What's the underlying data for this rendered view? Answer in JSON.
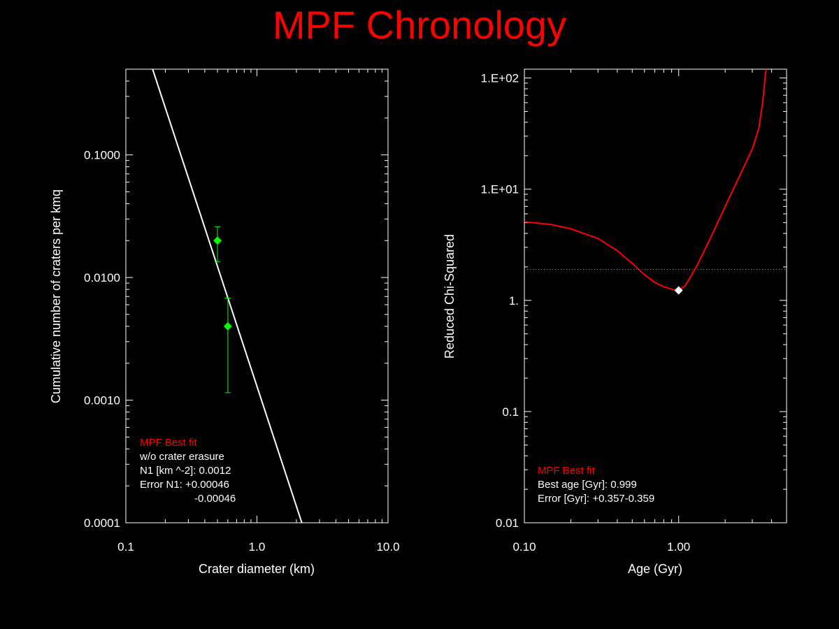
{
  "title": "MPF Chronology",
  "colors": {
    "background": "#000000",
    "title": "#ff0000",
    "fit_line": "#ffffff",
    "data_points": "#00ff00",
    "chi_curve": "#ff0000",
    "threshold": "#00ff00",
    "best_marker": "#ffffff",
    "legend_title": "#ff0000",
    "legend_text": "#ffffff"
  },
  "chart_data": [
    {
      "type": "scatter",
      "xlabel": "Crater diameter (km)",
      "ylabel": "Cumulative number of craters per kmq",
      "xscale": "log",
      "yscale": "log",
      "xlim": [
        0.1,
        10.0
      ],
      "ylim": [
        0.0001,
        0.5
      ],
      "xticks": [
        0.1,
        1.0,
        10.0
      ],
      "xtick_labels": [
        "0.1",
        "1.0",
        "10.0"
      ],
      "yticks": [
        0.0001,
        0.001,
        0.01,
        0.1
      ],
      "ytick_labels": [
        "0.0001",
        "0.0010",
        "0.0100",
        "0.1000"
      ],
      "fit_line": {
        "x": [
          0.16,
          2.2
        ],
        "y": [
          0.5,
          0.0001
        ]
      },
      "points": [
        {
          "x": 0.5,
          "y": 0.02,
          "y_low": 0.0135,
          "y_high": 0.026
        },
        {
          "x": 0.6,
          "y": 0.004,
          "y_low": 0.00115,
          "y_high": 0.0068
        }
      ],
      "legend": {
        "title": "MPF Best fit",
        "lines": [
          "w/o crater erasure",
          "N1 [km ^-2]: 0.0012",
          "Error N1: +0.00046",
          "-0.00046"
        ]
      }
    },
    {
      "type": "line",
      "xlabel": "Age (Gyr)",
      "ylabel": "Reduced Chi-Squared",
      "xscale": "log",
      "yscale": "log",
      "xlim": [
        0.1,
        5.0
      ],
      "ylim": [
        0.01,
        120
      ],
      "xticks": [
        0.1,
        1.0
      ],
      "xtick_labels": [
        "0.10",
        "1.00"
      ],
      "yticks": [
        0.01,
        0.1,
        1,
        10,
        100
      ],
      "ytick_labels": [
        "0.01",
        "0.1",
        "1.",
        "1.E+01",
        "1.E+02"
      ],
      "series": [
        {
          "x": [
            0.1,
            0.15,
            0.2,
            0.3,
            0.4,
            0.5,
            0.6,
            0.7,
            0.8,
            0.9,
            0.999,
            1.1,
            1.3,
            1.6,
            2.0,
            2.5,
            3.0,
            3.3,
            3.5,
            3.6,
            3.65,
            3.7
          ],
          "y": [
            5.1,
            4.8,
            4.4,
            3.6,
            2.8,
            2.15,
            1.7,
            1.45,
            1.33,
            1.26,
            1.23,
            1.35,
            2.0,
            3.6,
            7.0,
            13.5,
            23.0,
            35.0,
            60.0,
            90.0,
            110.0,
            120.0
          ]
        }
      ],
      "threshold_y": 1.9,
      "best_point": {
        "x": 0.999,
        "y": 1.23
      },
      "legend": {
        "title": "MPF Best fit",
        "lines": [
          "Best age [Gyr]: 0.999",
          "Error [Gyr]: +0.357-0.359"
        ]
      }
    }
  ]
}
